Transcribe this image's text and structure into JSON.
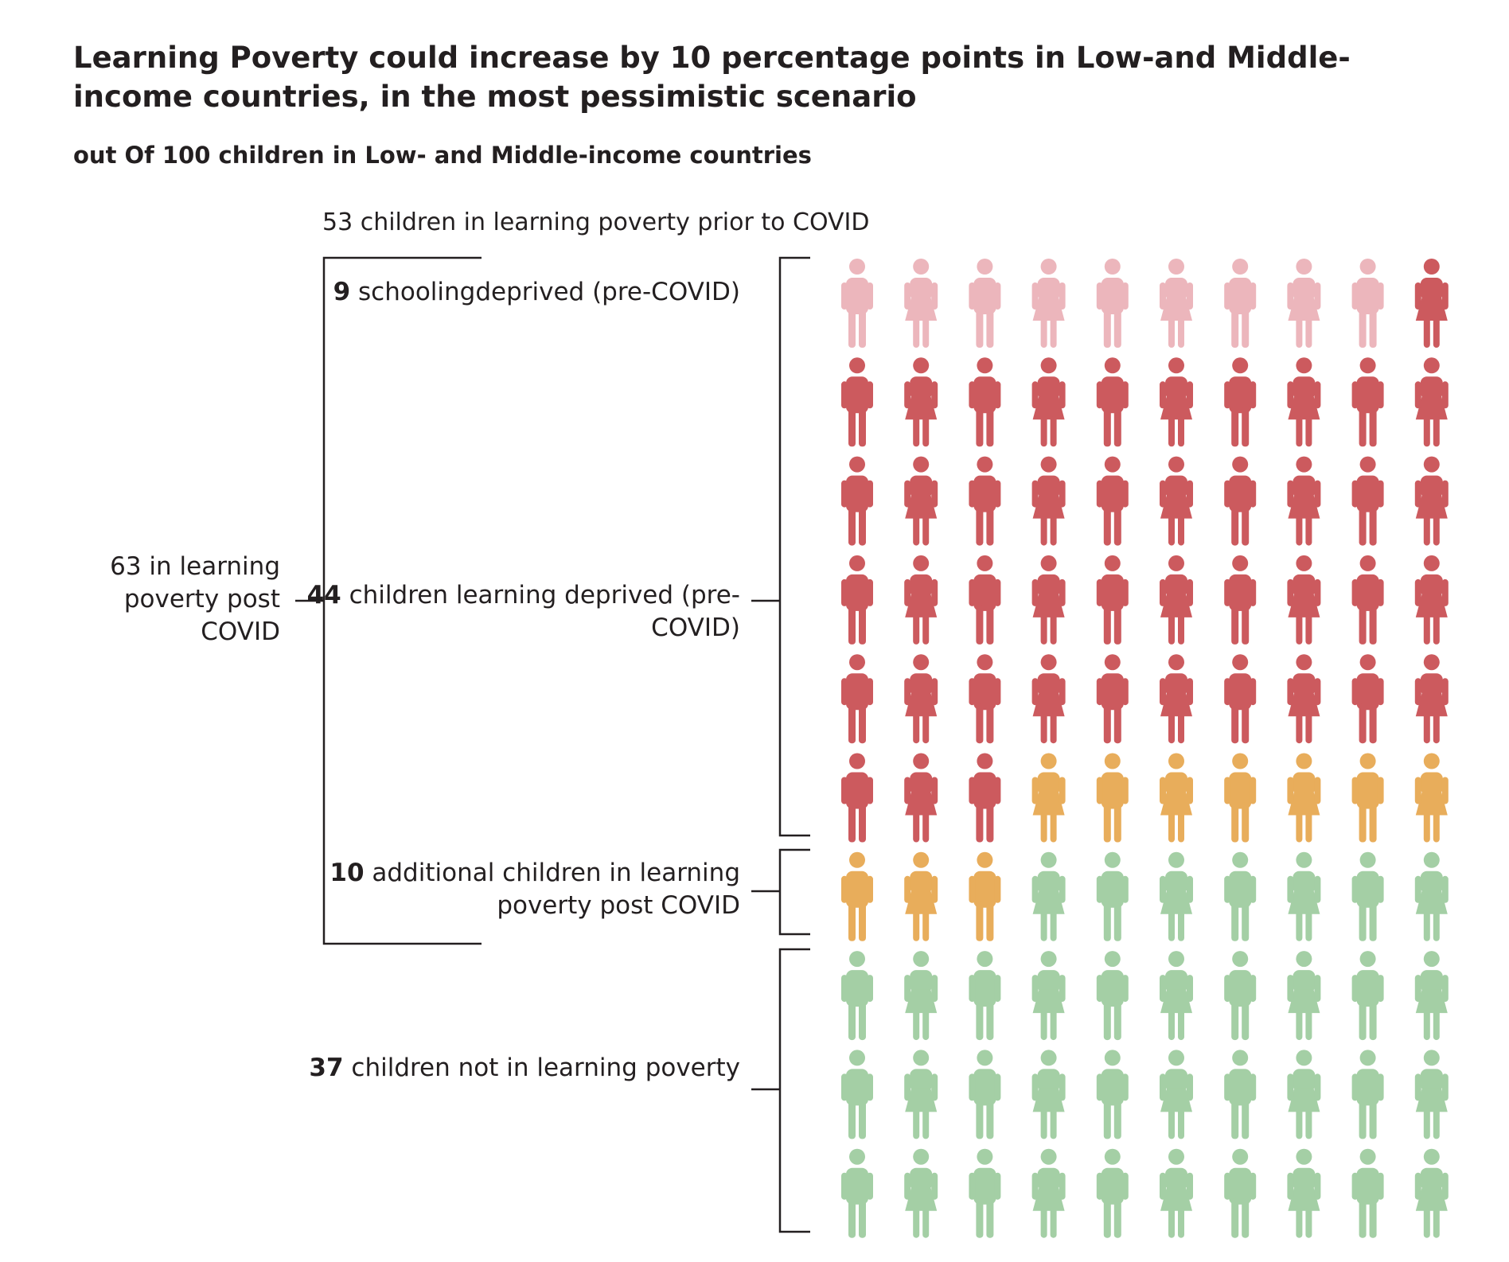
{
  "title": "Learning Poverty could increase by 10 percentage points in Low-and Middle-income countries, in the most pessimistic scenario",
  "subtitle": "out Of 100 children in Low- and Middle-income countries",
  "prior_label": "53 children in learning poverty prior to COVID",
  "post_label": "63 in learning poverty post COVID",
  "groups": {
    "schooling_deprived": {
      "count": "9",
      "text": " schoolingdeprived (pre-COVID)"
    },
    "learning_deprived": {
      "count": "44",
      "text": " children learning deprived (pre-COVID)"
    },
    "additional": {
      "count": "10",
      "text": " additional children in learning poverty post COVID"
    },
    "not_in_poverty": {
      "count": "37",
      "text": " children  not in learning poverty"
    }
  },
  "chart_data": {
    "type": "pictogram",
    "total": 100,
    "columns": 10,
    "categories": [
      {
        "key": "schooling_deprived",
        "count": 9,
        "color": "#ecb6bc"
      },
      {
        "key": "learning_deprived",
        "count": 44,
        "color": "#cc5a5e"
      },
      {
        "key": "additional",
        "count": 10,
        "color": "#e8ad5b"
      },
      {
        "key": "not_in_poverty",
        "count": 37,
        "color": "#a4cfa5"
      }
    ],
    "prior_total": 53,
    "post_total": 63
  }
}
